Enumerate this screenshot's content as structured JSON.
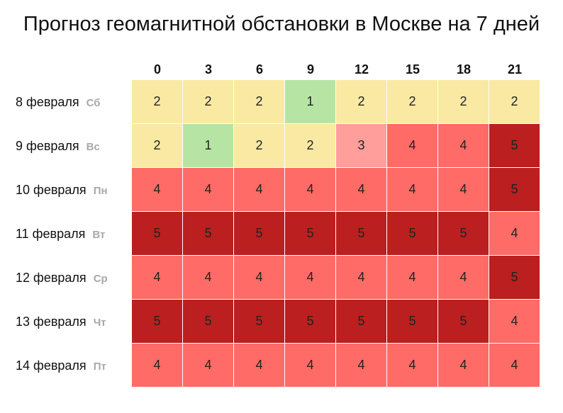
{
  "chart_data": {
    "type": "heatmap",
    "title": "Прогноз геомагнитной обстановки в Москве на 7 дней",
    "columns": [
      "0",
      "3",
      "6",
      "9",
      "12",
      "15",
      "18",
      "21"
    ],
    "rows": [
      {
        "date": "8 февраля",
        "dow": "Сб",
        "values": [
          2,
          2,
          2,
          1,
          2,
          2,
          2,
          2
        ]
      },
      {
        "date": "9 февраля",
        "dow": "Вс",
        "values": [
          2,
          1,
          2,
          2,
          3,
          4,
          4,
          5
        ]
      },
      {
        "date": "10 февраля",
        "dow": "Пн",
        "values": [
          4,
          4,
          4,
          4,
          4,
          4,
          4,
          5
        ]
      },
      {
        "date": "11 февраля",
        "dow": "Вт",
        "values": [
          5,
          5,
          5,
          5,
          5,
          5,
          5,
          4
        ]
      },
      {
        "date": "12 февраля",
        "dow": "Ср",
        "values": [
          4,
          4,
          4,
          4,
          4,
          4,
          4,
          5
        ]
      },
      {
        "date": "13 февраля",
        "dow": "Чт",
        "values": [
          5,
          5,
          5,
          5,
          5,
          5,
          5,
          4
        ]
      },
      {
        "date": "14 февраля",
        "dow": "Пт",
        "values": [
          4,
          4,
          4,
          4,
          4,
          4,
          4,
          4
        ]
      }
    ],
    "colors": {
      "1": "#b6e5a3",
      "2": "#fae9a3",
      "3": "#ff9e9b",
      "4": "#ff6b67",
      "5": "#bb1f1f"
    }
  }
}
